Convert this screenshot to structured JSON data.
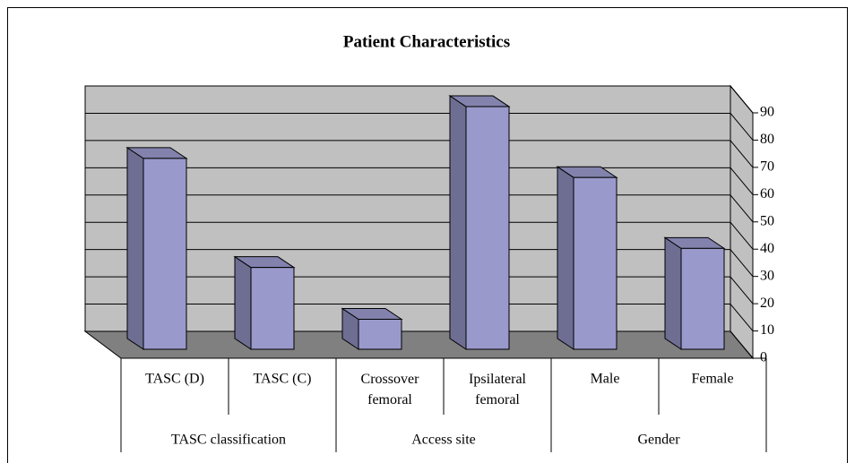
{
  "chart_data": {
    "type": "bar3d",
    "title": "Patient Characteristics",
    "categories": [
      "TASC (D)",
      "TASC (C)",
      "Crossover femoral",
      "Ipsilateral femoral",
      "Male",
      "Female"
    ],
    "values": [
      70,
      30,
      11,
      89,
      63,
      37
    ],
    "groups": [
      {
        "label": "TASC classification",
        "span": 2
      },
      {
        "label": "Access site",
        "span": 2
      },
      {
        "label": "Gender",
        "span": 2
      }
    ],
    "color": "#9999cc",
    "ylim": [
      0,
      90
    ],
    "yticks": [
      0,
      10,
      20,
      30,
      40,
      50,
      60,
      70,
      80,
      90
    ],
    "grid": true
  }
}
